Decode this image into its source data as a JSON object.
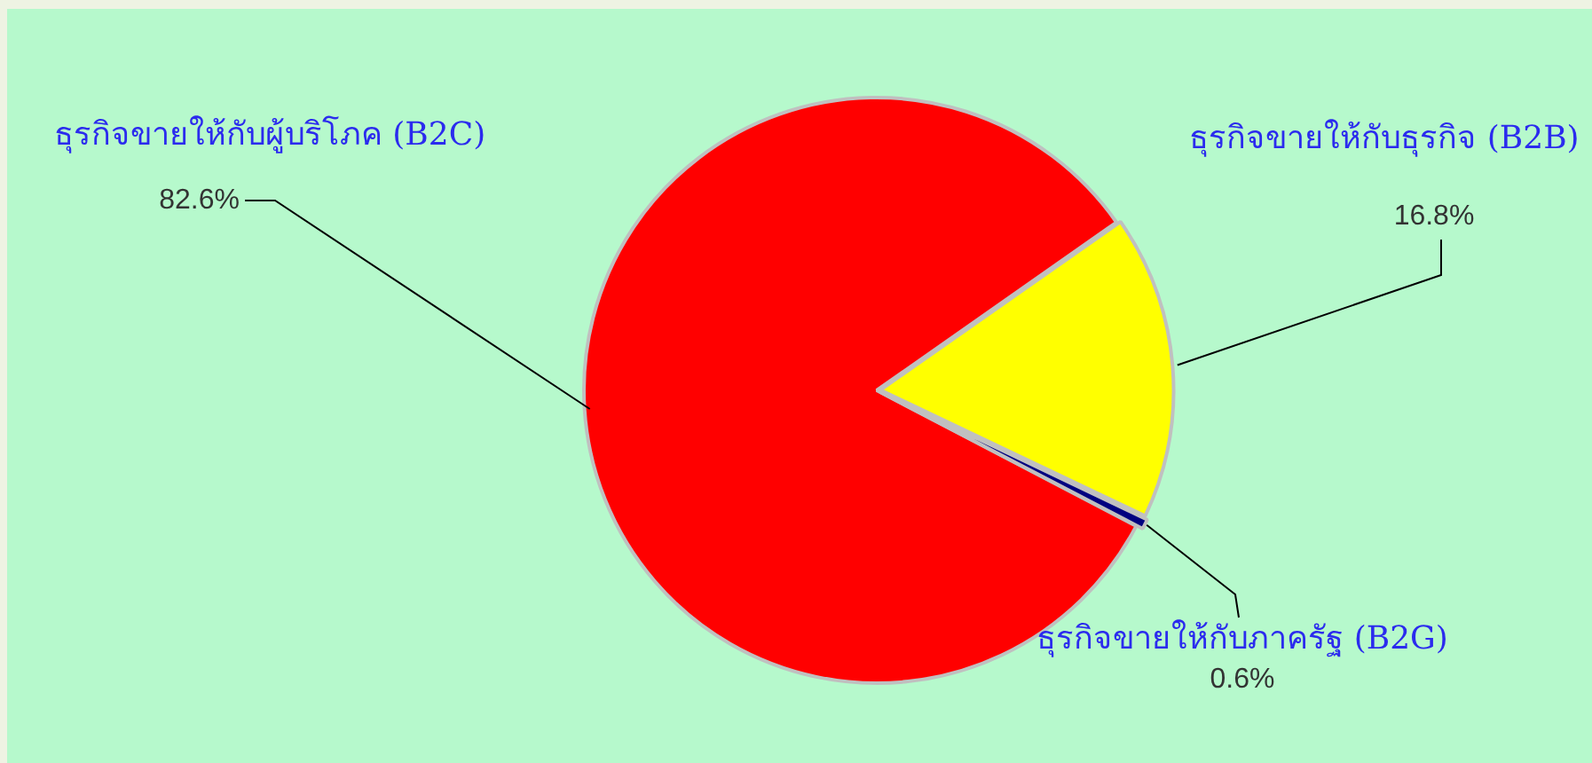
{
  "chart_data": {
    "type": "pie",
    "categories": [
      "ธุรกิจขายให้กับผู้บริโภค (B2C)",
      "ธุรกิจขายให้กับธุรกิจ (B2B)",
      "ธุรกิจขายให้กับภาครัฐ (B2G)"
    ],
    "values": [
      82.6,
      16.8,
      0.6
    ],
    "colors": [
      "#ff0000",
      "#ffff00",
      "#000080"
    ],
    "value_labels": [
      "82.6%",
      "16.8%",
      "0.6%"
    ],
    "legend": false
  }
}
